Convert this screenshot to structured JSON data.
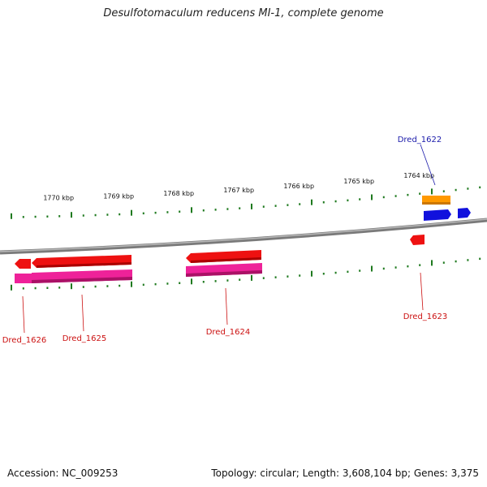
{
  "title": "Desulfotomaculum reducens MI-1, complete genome",
  "accession": "Accession: NC_009253",
  "summary": "Topology: circular; Length: 3,608,104 bp; Genes: 3,375",
  "colors": {
    "backbone": "#8a8a8a",
    "tick": "#1f7a1f",
    "label_forward": "#1a1aaa",
    "label_reverse": "#cc1111",
    "cds_red": "#ee1111",
    "gene_pink": "#ee2299",
    "orange": "#ff9900",
    "blue": "#1111dd"
  },
  "scale_labels": [
    {
      "label": "1770 kbp"
    },
    {
      "label": "1769 kbp"
    },
    {
      "label": "1768 kbp"
    },
    {
      "label": "1767 kbp"
    },
    {
      "label": "1766 kbp"
    },
    {
      "label": "1765 kbp"
    },
    {
      "label": "1764 kbp"
    }
  ],
  "gene_labels": [
    {
      "name": "Dred_1622",
      "strand": "forward"
    },
    {
      "name": "Dred_1623",
      "strand": "reverse"
    },
    {
      "name": "Dred_1624",
      "strand": "reverse"
    },
    {
      "name": "Dred_1625",
      "strand": "reverse"
    },
    {
      "name": "Dred_1626",
      "strand": "reverse"
    }
  ]
}
